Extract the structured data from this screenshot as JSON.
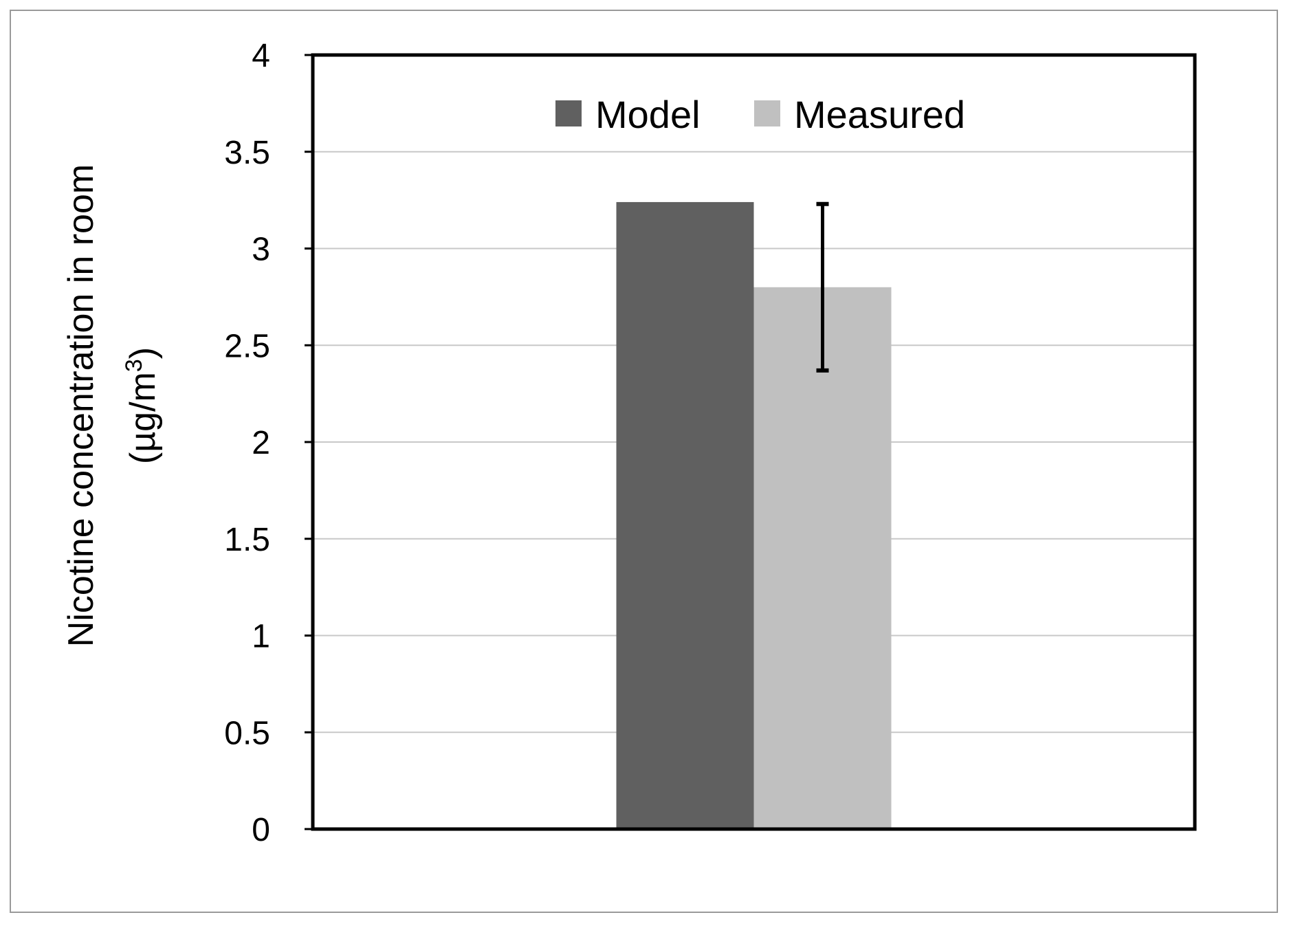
{
  "chart_data": {
    "type": "bar",
    "categories": [
      ""
    ],
    "series": [
      {
        "name": "Model",
        "values": [
          3.24
        ],
        "color": "#606060"
      },
      {
        "name": "Measured",
        "values": [
          2.8
        ],
        "color": "#c0c0c0",
        "error": [
          [
            2.37,
            3.23
          ]
        ]
      }
    ],
    "ylabel_line1": "Nicotine concentration in room",
    "ylabel_line2": "(µg/m",
    "ylabel_sup": "3",
    "ylabel_close": ")",
    "ylim": [
      0,
      4
    ],
    "yticks": [
      "0",
      "0.5",
      "1",
      "1.5",
      "2",
      "2.5",
      "3",
      "3.5",
      "4"
    ],
    "grid": true,
    "legend_position": "top-center"
  }
}
